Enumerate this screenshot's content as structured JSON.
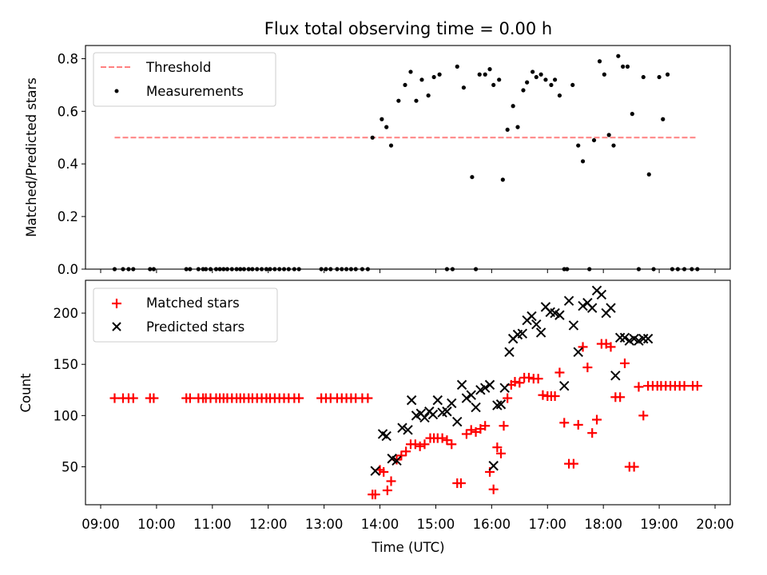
{
  "chart_data": [
    {
      "type": "scatter",
      "title": "Flux total observing time = 0.00 h",
      "xlabel": "",
      "ylabel": "Matched/Predicted stars",
      "xlim": [
        "09:00",
        "20:00"
      ],
      "ylim": [
        0,
        0.85
      ],
      "y_ticks": [
        0.0,
        0.2,
        0.4,
        0.6,
        0.8
      ],
      "y_tick_labels": [
        "0.0",
        "0.2",
        "0.4",
        "0.6",
        "0.8"
      ],
      "grid": false,
      "legend": "upper left",
      "threshold": {
        "name": "Threshold",
        "y": 0.5,
        "x_start": "09:15",
        "x_end": "19:40",
        "color": "#ff8080"
      },
      "series": [
        {
          "name": "Measurements",
          "color": "#000000",
          "x": [
            "09:15",
            "09:24",
            "09:30",
            "09:35",
            "09:53",
            "09:57",
            "10:32",
            "10:36",
            "10:45",
            "10:50",
            "10:53",
            "10:58",
            "11:04",
            "11:08",
            "11:12",
            "11:16",
            "11:21",
            "11:26",
            "11:30",
            "11:34",
            "11:39",
            "11:43",
            "11:48",
            "11:53",
            "11:58",
            "12:02",
            "12:07",
            "12:12",
            "12:17",
            "12:22",
            "12:28",
            "12:33",
            "12:57",
            "13:02",
            "13:07",
            "13:14",
            "13:19",
            "13:24",
            "13:29",
            "13:34",
            "13:41",
            "13:47",
            "13:52",
            "14:02",
            "14:07",
            "14:12",
            "14:20",
            "14:27",
            "14:33",
            "14:39",
            "14:45",
            "14:52",
            "14:58",
            "15:04",
            "15:12",
            "15:18",
            "15:23",
            "15:30",
            "15:39",
            "15:43",
            "15:47",
            "15:53",
            "15:58",
            "16:02",
            "16:08",
            "16:12",
            "16:17",
            "16:23",
            "16:28",
            "16:34",
            "16:38",
            "16:44",
            "16:48",
            "16:53",
            "16:58",
            "17:04",
            "17:08",
            "17:13",
            "17:18",
            "17:21",
            "17:27",
            "17:33",
            "17:38",
            "17:45",
            "17:50",
            "17:56",
            "18:01",
            "18:06",
            "18:11",
            "18:16",
            "18:21",
            "18:26",
            "18:31",
            "18:38",
            "18:43",
            "18:49",
            "18:54",
            "19:00",
            "19:04",
            "19:09",
            "19:14",
            "19:20",
            "19:27",
            "19:35",
            "19:41"
          ],
          "y": [
            0,
            0,
            0,
            0,
            0,
            0,
            0,
            0,
            0,
            0,
            0,
            0,
            0,
            0,
            0,
            0,
            0,
            0,
            0,
            0,
            0,
            0,
            0,
            0,
            0,
            0,
            0,
            0,
            0,
            0,
            0,
            0,
            0,
            0,
            0,
            0,
            0,
            0,
            0,
            0,
            0,
            0,
            0.5,
            0.57,
            0.54,
            0.47,
            0.64,
            0.7,
            0.75,
            0.64,
            0.72,
            0.66,
            0.73,
            0.74,
            0.0,
            0.0,
            0.77,
            0.69,
            0.35,
            0.0,
            0.74,
            0.74,
            0.76,
            0.7,
            0.72,
            0.34,
            0.53,
            0.62,
            0.54,
            0.68,
            0.71,
            0.75,
            0.73,
            0.74,
            0.72,
            0.7,
            0.72,
            0.66,
            0.0,
            0.0,
            0.7,
            0.47,
            0.41,
            0.0,
            0.49,
            0.79,
            0.74,
            0.51,
            0.47,
            0.81,
            0.77,
            0.77,
            0.59,
            0.0,
            0.73,
            0.36,
            0.0,
            0.73,
            0.57,
            0.74,
            0.0,
            0.0,
            0.0,
            0.0,
            0.0
          ]
        }
      ]
    },
    {
      "type": "scatter",
      "title": "",
      "xlabel": "Time (UTC)",
      "ylabel": "Count",
      "xlim": [
        "09:00",
        "20:00"
      ],
      "ylim": [
        13,
        232
      ],
      "x_tick_labels": [
        "09:00",
        "10:00",
        "11:00",
        "12:00",
        "13:00",
        "14:00",
        "15:00",
        "16:00",
        "17:00",
        "18:00",
        "19:00",
        "20:00"
      ],
      "y_ticks": [
        50,
        100,
        150,
        200
      ],
      "y_tick_labels": [
        "50",
        "100",
        "150",
        "200"
      ],
      "grid": false,
      "legend": "upper left",
      "series": [
        {
          "name": "Matched stars",
          "marker": "plus",
          "color": "#ff0000",
          "x": [
            "09:15",
            "09:24",
            "09:30",
            "09:35",
            "09:53",
            "09:57",
            "10:32",
            "10:36",
            "10:45",
            "10:50",
            "10:53",
            "10:58",
            "11:04",
            "11:08",
            "11:12",
            "11:16",
            "11:21",
            "11:26",
            "11:30",
            "11:34",
            "11:39",
            "11:43",
            "11:48",
            "11:53",
            "11:58",
            "12:02",
            "12:07",
            "12:12",
            "12:17",
            "12:22",
            "12:28",
            "12:33",
            "12:57",
            "13:02",
            "13:07",
            "13:14",
            "13:19",
            "13:24",
            "13:29",
            "13:34",
            "13:41",
            "13:47",
            "13:52",
            "13:55",
            "14:00",
            "14:04",
            "14:08",
            "14:12",
            "14:18",
            "14:23",
            "14:28",
            "14:33",
            "14:38",
            "14:43",
            "14:48",
            "14:54",
            "14:58",
            "15:02",
            "15:07",
            "15:12",
            "15:17",
            "15:23",
            "15:27",
            "15:33",
            "15:38",
            "15:43",
            "15:48",
            "15:53",
            "15:58",
            "16:02",
            "16:06",
            "16:10",
            "16:13",
            "16:17",
            "16:21",
            "16:25",
            "16:30",
            "16:35",
            "16:40",
            "16:45",
            "16:50",
            "16:55",
            "17:00",
            "17:04",
            "17:08",
            "17:13",
            "17:18",
            "17:23",
            "17:28",
            "17:33",
            "17:38",
            "17:43",
            "17:48",
            "17:53",
            "17:58",
            "18:03",
            "18:08",
            "18:13",
            "18:18",
            "18:23",
            "18:28",
            "18:33",
            "18:38",
            "18:43",
            "18:48",
            "18:53",
            "18:58",
            "19:02",
            "19:07",
            "19:12",
            "19:17",
            "19:22",
            "19:27",
            "19:36",
            "19:41"
          ],
          "y": [
            117,
            117,
            117,
            117,
            117,
            117,
            117,
            117,
            117,
            117,
            117,
            117,
            117,
            117,
            117,
            117,
            117,
            117,
            117,
            117,
            117,
            117,
            117,
            117,
            117,
            117,
            117,
            117,
            117,
            117,
            117,
            117,
            117,
            117,
            117,
            117,
            117,
            117,
            117,
            117,
            117,
            117,
            23,
            23,
            47,
            45,
            27,
            36,
            57,
            61,
            65,
            72,
            72,
            70,
            72,
            78,
            78,
            78,
            78,
            76,
            72,
            34,
            34,
            82,
            86,
            84,
            87,
            90,
            45,
            28,
            69,
            63,
            90,
            117,
            130,
            133,
            132,
            137,
            137,
            136,
            136,
            120,
            119,
            119,
            119,
            142,
            93,
            53,
            53,
            91,
            167,
            147,
            83,
            96,
            170,
            170,
            167,
            118,
            118,
            151,
            50,
            50,
            128,
            100,
            129,
            129,
            129,
            129,
            129,
            129,
            129,
            129,
            129,
            129,
            129
          ],
          "note": ""
        },
        {
          "name": "Predicted stars",
          "marker": "x",
          "color": "#000000",
          "x": [
            "13:55",
            "14:03",
            "14:07",
            "14:13",
            "14:18",
            "14:24",
            "14:30",
            "14:34",
            "14:39",
            "14:44",
            "14:48",
            "14:53",
            "14:57",
            "15:02",
            "15:07",
            "15:12",
            "15:17",
            "15:23",
            "15:28",
            "15:33",
            "15:38",
            "15:43",
            "15:48",
            "15:53",
            "15:58",
            "16:02",
            "16:06",
            "16:10",
            "16:14",
            "16:19",
            "16:23",
            "16:28",
            "16:33",
            "16:38",
            "16:43",
            "16:48",
            "16:53",
            "16:58",
            "17:03",
            "17:08",
            "17:13",
            "17:18",
            "17:23",
            "17:28",
            "17:33",
            "17:38",
            "17:43",
            "17:48",
            "17:53",
            "17:58",
            "18:03",
            "18:08",
            "18:13",
            "18:18",
            "18:23",
            "18:28",
            "18:33",
            "18:38",
            "18:43",
            "18:48"
          ],
          "y": [
            46,
            82,
            80,
            58,
            56,
            88,
            86,
            115,
            100,
            102,
            98,
            104,
            101,
            115,
            103,
            104,
            112,
            94,
            130,
            117,
            120,
            108,
            125,
            127,
            130,
            51,
            110,
            111,
            127,
            162,
            175,
            179,
            180,
            193,
            197,
            189,
            181,
            206,
            201,
            200,
            198,
            129,
            212,
            188,
            162,
            207,
            210,
            205,
            222,
            218,
            200,
            205,
            139,
            176,
            176,
            173,
            175,
            173,
            175,
            175
          ],
          "note": ""
        }
      ]
    }
  ]
}
